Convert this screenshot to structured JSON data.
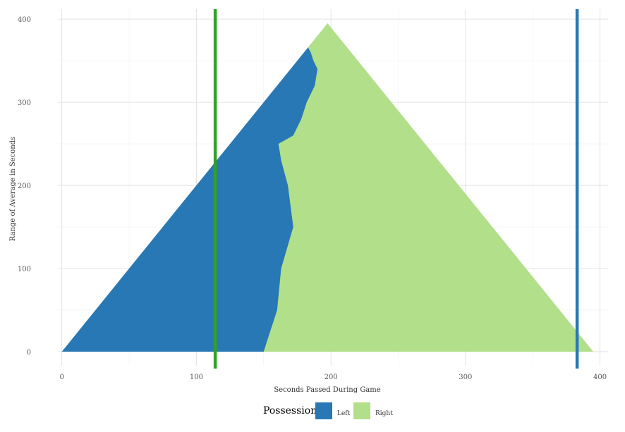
{
  "chart_data": {
    "type": "heatmap",
    "title": "",
    "xlabel": "Seconds Passed During Game",
    "ylabel": "Range of Average in Seconds",
    "xlim": [
      -3,
      406
    ],
    "ylim": [
      -17,
      412
    ],
    "x_ticks": [
      0,
      100,
      200,
      300,
      400
    ],
    "y_ticks": [
      0,
      100,
      200,
      300,
      400
    ],
    "grid": true,
    "legend": {
      "title": "Possession",
      "position": "bottom",
      "entries": [
        {
          "label": "Left",
          "color": "#2878b5"
        },
        {
          "label": "Right",
          "color": "#b2df8a"
        }
      ]
    },
    "triangle": {
      "x_start": 0,
      "x_end": 395,
      "apex_x": 197.5,
      "apex_y": 395
    },
    "boundary_left_region": {
      "x": [
        0,
        100,
        150,
        160,
        163,
        172,
        168,
        163,
        161,
        172,
        178,
        182,
        188,
        190,
        187,
        185,
        183
      ],
      "y": [
        0,
        0,
        0,
        50,
        100,
        150,
        200,
        230,
        250,
        260,
        280,
        300,
        320,
        340,
        350,
        360,
        366
      ]
    },
    "vertical_lines": [
      {
        "x": 114,
        "color": "#33a02c"
      },
      {
        "x": 383,
        "color": "#2878b5"
      }
    ]
  }
}
